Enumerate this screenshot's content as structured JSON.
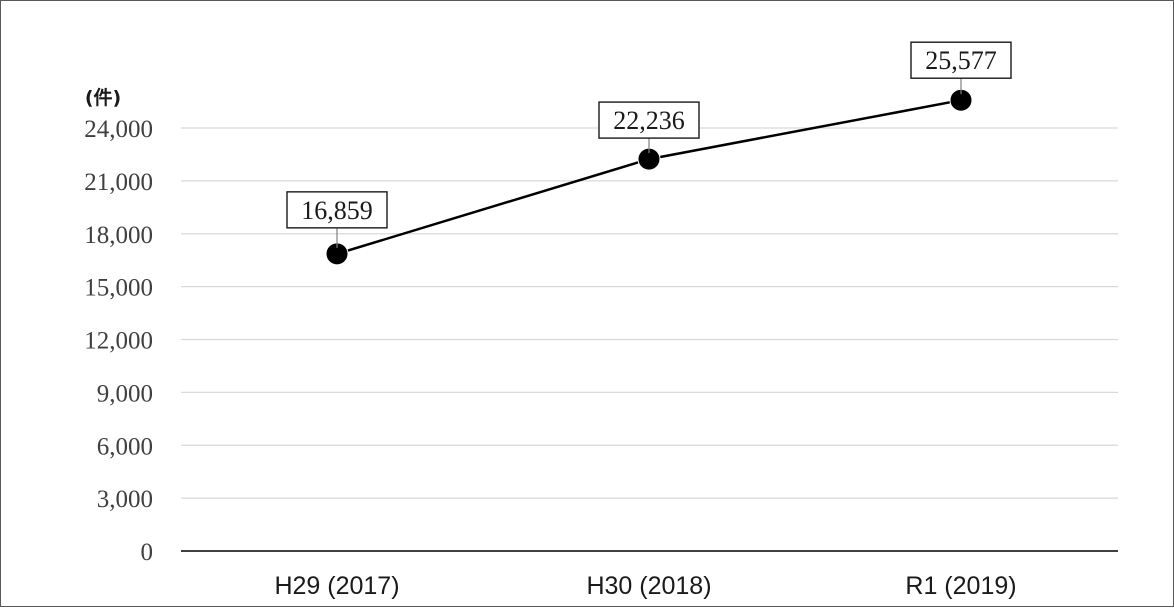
{
  "chart_data": {
    "type": "line",
    "title": "",
    "xlabel": "",
    "ylabel": "",
    "y_unit_label": "(件)",
    "categories": [
      "H29 (2017)",
      "H30 (2018)",
      "R1 (2019)"
    ],
    "series": [
      {
        "values": [
          16859,
          22236,
          25577
        ],
        "data_labels": [
          "16,859",
          "22,236",
          "25,577"
        ],
        "color": "#000000"
      }
    ],
    "ylim": [
      0,
      24000
    ],
    "yticks": [
      0,
      3000,
      6000,
      9000,
      12000,
      15000,
      18000,
      21000,
      24000
    ],
    "ytick_labels": [
      "0",
      "3,000",
      "6,000",
      "9,000",
      "12,000",
      "15,000",
      "18,000",
      "21,000",
      "24,000"
    ],
    "grid": true,
    "legend": "none",
    "gridline_color": "#d9d9d9",
    "axis_color": "#000000"
  }
}
